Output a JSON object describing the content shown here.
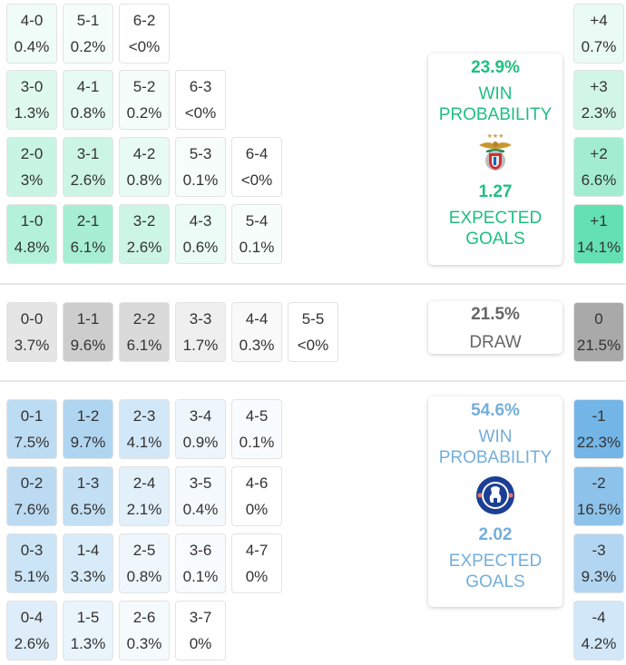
{
  "colors": {
    "home": "#5fe0b0",
    "draw": "#a6a6a6",
    "away": "#6fb3e6",
    "home_text": "#1fbf80",
    "draw_text": "#666666",
    "away_text": "#74aedb"
  },
  "home_grid": [
    [
      {
        "score": "4-0",
        "pct": "0.4%",
        "v": 0.4
      },
      {
        "score": "5-1",
        "pct": "0.2%",
        "v": 0.2
      },
      {
        "score": "6-2",
        "pct": "<0%",
        "v": 0
      }
    ],
    [
      {
        "score": "3-0",
        "pct": "1.3%",
        "v": 1.3
      },
      {
        "score": "4-1",
        "pct": "0.8%",
        "v": 0.8
      },
      {
        "score": "5-2",
        "pct": "0.2%",
        "v": 0.2
      },
      {
        "score": "6-3",
        "pct": "<0%",
        "v": 0
      }
    ],
    [
      {
        "score": "2-0",
        "pct": "3%",
        "v": 3
      },
      {
        "score": "3-1",
        "pct": "2.6%",
        "v": 2.6
      },
      {
        "score": "4-2",
        "pct": "0.8%",
        "v": 0.8
      },
      {
        "score": "5-3",
        "pct": "0.1%",
        "v": 0.1
      },
      {
        "score": "6-4",
        "pct": "<0%",
        "v": 0
      }
    ],
    [
      {
        "score": "1-0",
        "pct": "4.8%",
        "v": 4.8
      },
      {
        "score": "2-1",
        "pct": "6.1%",
        "v": 6.1
      },
      {
        "score": "3-2",
        "pct": "2.6%",
        "v": 2.6
      },
      {
        "score": "4-3",
        "pct": "0.6%",
        "v": 0.6
      },
      {
        "score": "5-4",
        "pct": "0.1%",
        "v": 0.1
      }
    ]
  ],
  "draw_row": [
    {
      "score": "0-0",
      "pct": "3.7%",
      "v": 3.7
    },
    {
      "score": "1-1",
      "pct": "9.6%",
      "v": 9.6
    },
    {
      "score": "2-2",
      "pct": "6.1%",
      "v": 6.1
    },
    {
      "score": "3-3",
      "pct": "1.7%",
      "v": 1.7
    },
    {
      "score": "4-4",
      "pct": "0.3%",
      "v": 0.3
    },
    {
      "score": "5-5",
      "pct": "<0%",
      "v": 0
    }
  ],
  "away_grid": [
    [
      {
        "score": "0-1",
        "pct": "7.5%",
        "v": 7.5
      },
      {
        "score": "1-2",
        "pct": "9.7%",
        "v": 9.7
      },
      {
        "score": "2-3",
        "pct": "4.1%",
        "v": 4.1
      },
      {
        "score": "3-4",
        "pct": "0.9%",
        "v": 0.9
      },
      {
        "score": "4-5",
        "pct": "0.1%",
        "v": 0.1
      }
    ],
    [
      {
        "score": "0-2",
        "pct": "7.6%",
        "v": 7.6
      },
      {
        "score": "1-3",
        "pct": "6.5%",
        "v": 6.5
      },
      {
        "score": "2-4",
        "pct": "2.1%",
        "v": 2.1
      },
      {
        "score": "3-5",
        "pct": "0.4%",
        "v": 0.4
      },
      {
        "score": "4-6",
        "pct": "0%",
        "v": 0
      }
    ],
    [
      {
        "score": "0-3",
        "pct": "5.1%",
        "v": 5.1
      },
      {
        "score": "1-4",
        "pct": "3.3%",
        "v": 3.3
      },
      {
        "score": "2-5",
        "pct": "0.8%",
        "v": 0.8
      },
      {
        "score": "3-6",
        "pct": "0.1%",
        "v": 0.1
      },
      {
        "score": "4-7",
        "pct": "0%",
        "v": 0
      }
    ],
    [
      {
        "score": "0-4",
        "pct": "2.6%",
        "v": 2.6
      },
      {
        "score": "1-5",
        "pct": "1.3%",
        "v": 1.3
      },
      {
        "score": "2-6",
        "pct": "0.3%",
        "v": 0.3
      },
      {
        "score": "3-7",
        "pct": "0%",
        "v": 0
      }
    ]
  ],
  "margins": {
    "home": [
      {
        "label": "+4",
        "pct": "0.7%",
        "v": 0.7
      },
      {
        "label": "+3",
        "pct": "2.3%",
        "v": 2.3
      },
      {
        "label": "+2",
        "pct": "6.6%",
        "v": 6.6
      },
      {
        "label": "+1",
        "pct": "14.1%",
        "v": 14.1
      }
    ],
    "draw": [
      {
        "label": "0",
        "pct": "21.5%",
        "v": 21.5
      }
    ],
    "away": [
      {
        "label": "-1",
        "pct": "22.3%",
        "v": 22.3
      },
      {
        "label": "-2",
        "pct": "16.5%",
        "v": 16.5
      },
      {
        "label": "-3",
        "pct": "9.3%",
        "v": 9.3
      },
      {
        "label": "-4",
        "pct": "4.2%",
        "v": 4.2
      }
    ]
  },
  "home_panel": {
    "win_pct": "23.9%",
    "win_label_1": "WIN",
    "win_label_2": "PROBABILITY",
    "team_logo": "benfica-crest",
    "xg": "1.27",
    "xg_label_1": "EXPECTED",
    "xg_label_2": "GOALS"
  },
  "draw_panel": {
    "pct": "21.5%",
    "label": "DRAW"
  },
  "away_panel": {
    "win_pct": "54.6%",
    "win_label_1": "WIN",
    "win_label_2": "PROBABILITY",
    "team_logo": "chelsea-crest",
    "xg": "2.02",
    "xg_label_1": "EXPECTED",
    "xg_label_2": "GOALS"
  }
}
